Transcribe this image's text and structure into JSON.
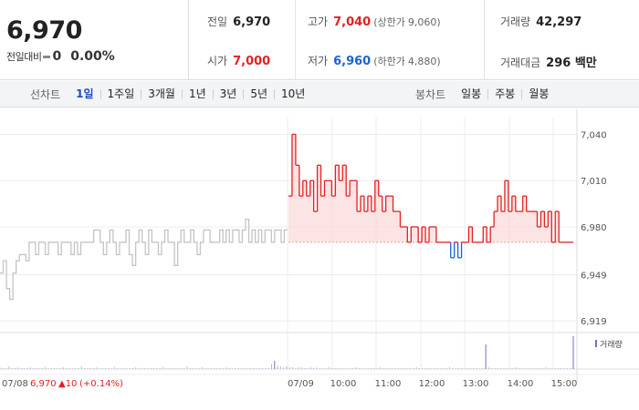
{
  "quote": {
    "price": "6,970",
    "change_label": "전일대비",
    "change_value": "0",
    "change_rate": "0.00%",
    "prev_close_label": "전일",
    "prev_close": "6,970",
    "high_label": "고가",
    "high": "7,040",
    "upper_limit_label": "(상한가",
    "upper_limit": "9,060)",
    "volume_label": "거래량",
    "volume": "42,297",
    "open_label": "시가",
    "open": "7,000",
    "low_label": "저가",
    "low": "6,960",
    "lower_limit_label": "(하한가",
    "lower_limit": "4,880)",
    "value_label": "거래대금",
    "value": "296 백만"
  },
  "line_tabs": {
    "title": "선차트",
    "items": [
      "1일",
      "1주일",
      "3개월",
      "1년",
      "3년",
      "5년",
      "10년"
    ],
    "active": 0
  },
  "candle_tabs": {
    "title": "봉차트",
    "items": [
      "일봉",
      "주봉",
      "월봉"
    ]
  },
  "colors": {
    "up": "#e52020",
    "down": "#1b63d4",
    "prev": "#c4c4c4",
    "volume": "#7b6bd0",
    "fill": "#fbd9d9"
  },
  "chart_data": {
    "type": "line",
    "ylim": [
      6915,
      7045
    ],
    "y_ticks": [
      "7,040",
      "7,010",
      "6,980",
      "6,949",
      "6,919"
    ],
    "y_tick_values": [
      7040,
      7010,
      6980,
      6949,
      6919
    ],
    "baseline": 6970,
    "x_ticks": [
      "07/08",
      "07/09",
      "10:00",
      "11:00",
      "12:00",
      "13:00",
      "14:00",
      "15:00"
    ],
    "prev_day_label": "07/08",
    "prev_day_price": "6,970",
    "prev_day_change": "▲10",
    "prev_day_rate": "(+0.14%)",
    "volume_legend": "거래량",
    "series": [
      {
        "session": "07/08",
        "values": [
          6950,
          6958,
          6940,
          6933,
          6950,
          6958,
          6962,
          6962,
          6958,
          6970,
          6970,
          6962,
          6970,
          6970,
          6962,
          6970,
          6970,
          6970,
          6962,
          6970,
          6970,
          6970,
          6962,
          6970,
          6962,
          6970,
          6970,
          6970,
          6970,
          6978,
          6978,
          6970,
          6962,
          6970,
          6978,
          6970,
          6962,
          6970,
          6970,
          6978,
          6962,
          6955,
          6970,
          6978,
          6970,
          6962,
          6978,
          6970,
          6970,
          6962,
          6970,
          6978,
          6970,
          6970,
          6955,
          6970,
          6978,
          6970,
          6970,
          6978,
          6970,
          6962,
          6970,
          6978,
          6978,
          6970,
          6970,
          6970,
          6978,
          6970,
          6978,
          6970,
          6978,
          6978,
          6970,
          6978,
          6985,
          6970,
          6978,
          6970,
          6978,
          6970,
          6978,
          6978,
          6970,
          6978,
          6978,
          6970,
          6978,
          6978
        ]
      },
      {
        "session": "07/09",
        "values": [
          7000,
          7040,
          7020,
          7000,
          7010,
          7000,
          7010,
          6990,
          7020,
          7000,
          7010,
          7010,
          7000,
          7020,
          7010,
          7020,
          7000,
          7010,
          7010,
          6990,
          7000,
          6990,
          7000,
          6990,
          7010,
          7000,
          6990,
          7000,
          7000,
          6990,
          6990,
          6980,
          6980,
          6970,
          6980,
          6980,
          6970,
          6980,
          6970,
          6980,
          6980,
          6970,
          6970,
          6970,
          6970,
          6960,
          6970,
          6960,
          6970,
          6970,
          6980,
          6970,
          6970,
          6970,
          6980,
          6970,
          6980,
          6990,
          7000,
          6990,
          7010,
          6990,
          7000,
          6990,
          6990,
          7000,
          6990,
          6990,
          6990,
          6980,
          6990,
          6980,
          6990,
          6970,
          6990,
          6970,
          6970,
          6970,
          6970,
          6970
        ]
      }
    ],
    "volume": [
      2,
      1,
      1,
      3,
      1,
      1,
      2,
      1,
      1,
      1,
      2,
      1,
      1,
      1,
      1,
      2,
      1,
      1,
      1,
      1,
      1,
      2,
      1,
      1,
      1,
      1,
      1,
      3,
      1,
      1,
      1,
      1,
      2,
      1,
      1,
      1,
      1,
      1,
      2,
      1,
      1,
      1,
      1,
      1,
      1,
      2,
      1,
      1,
      1,
      1,
      1,
      1,
      1,
      1,
      2,
      1,
      1,
      1,
      1,
      1,
      1,
      1,
      3,
      1,
      1,
      1,
      1,
      2,
      1,
      1,
      1,
      1,
      1,
      1,
      1,
      2,
      1,
      1,
      1,
      1,
      1,
      1,
      1,
      1,
      1,
      1,
      1,
      1,
      1,
      1,
      6,
      10,
      4,
      3,
      2,
      3,
      2,
      2,
      1,
      2,
      2,
      1,
      1,
      2,
      1,
      2,
      1,
      1,
      1,
      2,
      1,
      1,
      1,
      1,
      1,
      1,
      1,
      1,
      2,
      1,
      1,
      1,
      1,
      1,
      1,
      1,
      2,
      1,
      1,
      1,
      1,
      1,
      1,
      1,
      1,
      1,
      1,
      1,
      2,
      1,
      1,
      1,
      1,
      1,
      1,
      1,
      1,
      1,
      1,
      2,
      1,
      1,
      1,
      1,
      1,
      1,
      1,
      1,
      1,
      1,
      1,
      30,
      2,
      1,
      1,
      1,
      1,
      1,
      1,
      1,
      1,
      2,
      1,
      1,
      1,
      1,
      1,
      1,
      1,
      1,
      1,
      2,
      1,
      1,
      1,
      1,
      1,
      1,
      1,
      1,
      40
    ]
  }
}
